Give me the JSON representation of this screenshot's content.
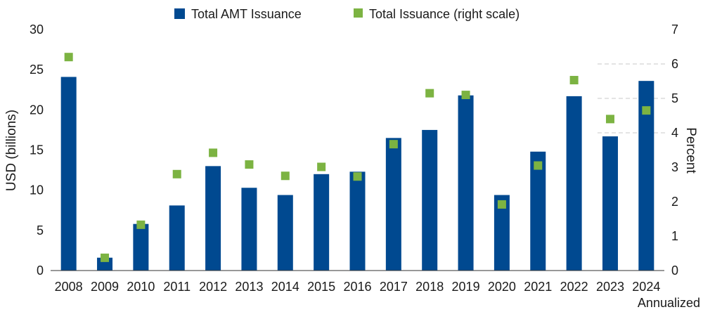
{
  "chart_data": {
    "type": "bar",
    "categories": [
      "2008",
      "2009",
      "2010",
      "2011",
      "2012",
      "2013",
      "2014",
      "2015",
      "2016",
      "2017",
      "2018",
      "2019",
      "2020",
      "2021",
      "2022",
      "2023",
      "2024"
    ],
    "last_category_sublabel": "Annualized",
    "series": [
      {
        "name": "Total AMT Issuance",
        "type": "bar",
        "axis": "left",
        "color": "#004990",
        "values": [
          24.1,
          1.6,
          5.8,
          8.1,
          13.0,
          10.3,
          9.4,
          12.0,
          12.3,
          16.5,
          17.5,
          21.8,
          9.4,
          14.8,
          21.7,
          16.7,
          23.6
        ]
      },
      {
        "name": "Total Issuance (right scale)",
        "type": "scatter",
        "axis": "right",
        "color": "#7cb342",
        "values": [
          6.2,
          0.37,
          1.33,
          2.8,
          3.42,
          3.08,
          2.75,
          3.01,
          2.73,
          3.67,
          5.15,
          5.1,
          1.92,
          3.05,
          5.53,
          4.4,
          4.65
        ]
      }
    ],
    "ylabel": "USD (billions)",
    "y2label": "Percent",
    "ylim": [
      0,
      30
    ],
    "y2lim": [
      0,
      7
    ],
    "yticks": [
      0,
      5,
      10,
      15,
      20,
      25,
      30
    ],
    "y2ticks": [
      0,
      1,
      2,
      3,
      4,
      5,
      6,
      7
    ],
    "gridlines": "dashed, upper-right area only",
    "legend_position": "top"
  }
}
